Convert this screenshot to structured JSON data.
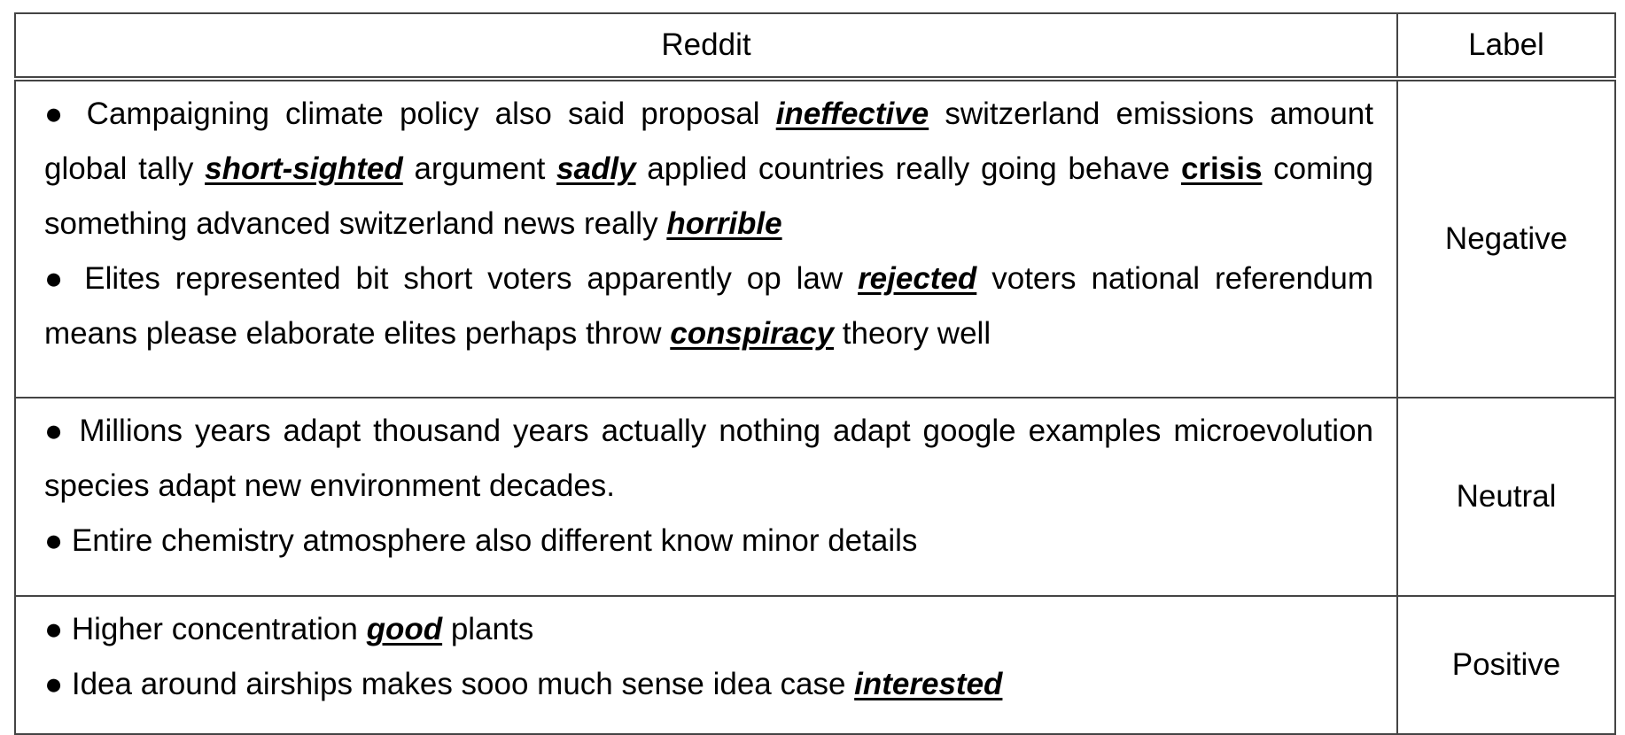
{
  "table": {
    "headers": {
      "reddit": "Reddit",
      "label": "Label"
    },
    "rows": [
      {
        "label": "Negative",
        "bullets": [
          {
            "segments": [
              {
                "text": "● Campaigning climate policy also said proposal ",
                "style": "plain"
              },
              {
                "text": "ineffective",
                "style": "keyword"
              },
              {
                "text": " switzerland emissions amount global tally ",
                "style": "plain"
              },
              {
                "text": "short-sighted",
                "style": "keyword"
              },
              {
                "text": " argument ",
                "style": "plain"
              },
              {
                "text": "sadly",
                "style": "keyword"
              },
              {
                "text": " applied countries really going behave ",
                "style": "plain"
              },
              {
                "text": "crisis",
                "style": "keyword-upright"
              },
              {
                "text": " coming something advanced switzerland news really ",
                "style": "plain"
              },
              {
                "text": "horrible",
                "style": "keyword"
              }
            ]
          },
          {
            "segments": [
              {
                "text": "● Elites represented bit short voters apparently op law ",
                "style": "plain"
              },
              {
                "text": "rejected",
                "style": "keyword"
              },
              {
                "text": " voters national referendum means please elaborate elites perhaps throw ",
                "style": "plain"
              },
              {
                "text": "conspiracy",
                "style": "keyword"
              },
              {
                "text": " theory well",
                "style": "plain"
              }
            ]
          }
        ]
      },
      {
        "label": "Neutral",
        "bullets": [
          {
            "segments": [
              {
                "text": "● Millions years adapt thousand years actually nothing adapt google examples microevolution species adapt new environment decades.",
                "style": "plain"
              }
            ]
          },
          {
            "segments": [
              {
                "text": "● Entire chemistry atmosphere also different know minor details",
                "style": "plain"
              }
            ]
          }
        ]
      },
      {
        "label": "Positive",
        "bullets": [
          {
            "segments": [
              {
                "text": "● Higher concentration ",
                "style": "plain"
              },
              {
                "text": "good",
                "style": "keyword"
              },
              {
                "text": " plants",
                "style": "plain"
              }
            ]
          },
          {
            "segments": [
              {
                "text": "● Idea around airships makes sooo much sense idea case ",
                "style": "plain"
              },
              {
                "text": "interested",
                "style": "keyword"
              }
            ]
          }
        ]
      }
    ]
  }
}
